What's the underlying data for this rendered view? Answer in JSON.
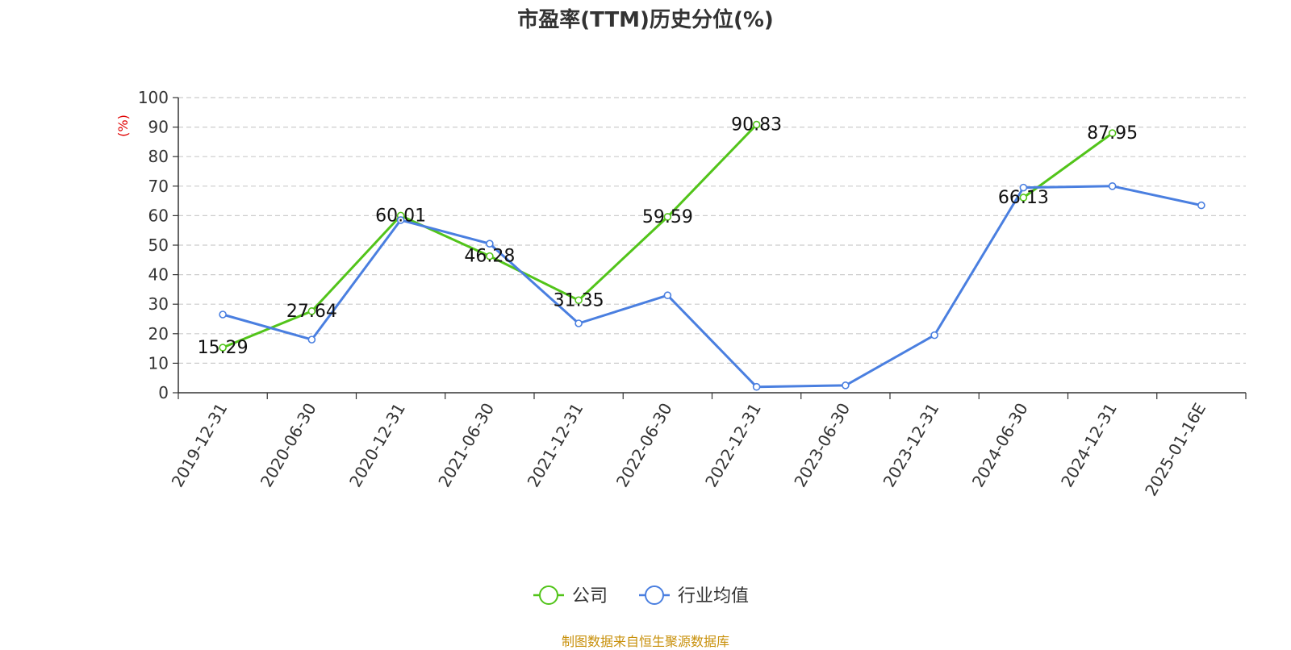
{
  "chart_data": {
    "type": "line",
    "title": "市盈率(TTM)历史分位(%)",
    "ylabel": "(%)",
    "xlabel": "",
    "ylim": [
      0,
      100
    ],
    "yticks": [
      0,
      10,
      20,
      30,
      40,
      50,
      60,
      70,
      80,
      90,
      100
    ],
    "grid": true,
    "legend_position": "bottom-center",
    "categories": [
      "2019-12-31",
      "2020-06-30",
      "2020-12-31",
      "2021-06-30",
      "2021-12-31",
      "2022-06-30",
      "2022-12-31",
      "2023-06-30",
      "2023-12-31",
      "2024-06-30",
      "2024-12-31",
      "2025-01-16E"
    ],
    "series": [
      {
        "name": "公司",
        "color": "#52c41a",
        "show_labels": true,
        "values": [
          15.29,
          27.64,
          60.01,
          46.28,
          31.35,
          59.59,
          90.83,
          null,
          null,
          66.13,
          87.95,
          null
        ],
        "labels": [
          "15.29",
          "27.64",
          "60.01",
          "46.28",
          "31.35",
          "59.59",
          "90.83",
          null,
          null,
          "66.13",
          "87.95",
          null
        ]
      },
      {
        "name": "行业均值",
        "color": "#4a7fe0",
        "show_labels": false,
        "values": [
          26.5,
          18.0,
          58.5,
          50.5,
          23.5,
          33.0,
          2.0,
          2.5,
          19.5,
          69.5,
          70.0,
          63.5
        ]
      }
    ]
  },
  "source": "制图数据来自恒生聚源数据库"
}
